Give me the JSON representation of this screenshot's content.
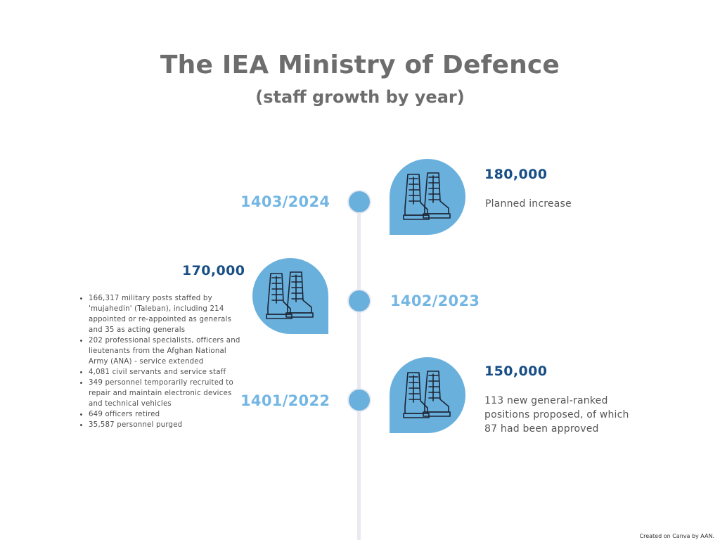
{
  "title": "The IEA Ministry of Defence",
  "subtitle": "(staff growth by year)",
  "colors": {
    "accent": "#6ab0dd",
    "year_text": "#74b6e3",
    "value_text": "#184e86",
    "title_text": "#6d6d6d",
    "line": "#e9eaf1"
  },
  "icon": "combat-boots-icon",
  "entries": [
    {
      "year": "1403/2024",
      "value": "180,000",
      "description": "Planned increase"
    },
    {
      "year": "1402/2023",
      "value": "170,000",
      "bullets": [
        "166,317 military posts staffed by 'mujahedin' (Taleban), including 214 appointed or re-appointed as generals and 35 as acting generals",
        "202 professional specialists, officers and lieutenants from the Afghan National Army (ANA) - service extended",
        "4,081 civil servants and service staff",
        "349 personnel temporarily recruited to repair and maintain electronic devices and technical vehicles",
        "649 officers retired",
        "35,587 personnel purged"
      ]
    },
    {
      "year": "1401/2022",
      "value": "150,000",
      "description": "113 new general-ranked positions proposed, of which 87 had been approved"
    }
  ],
  "credit": "Created on Canva by AAN."
}
